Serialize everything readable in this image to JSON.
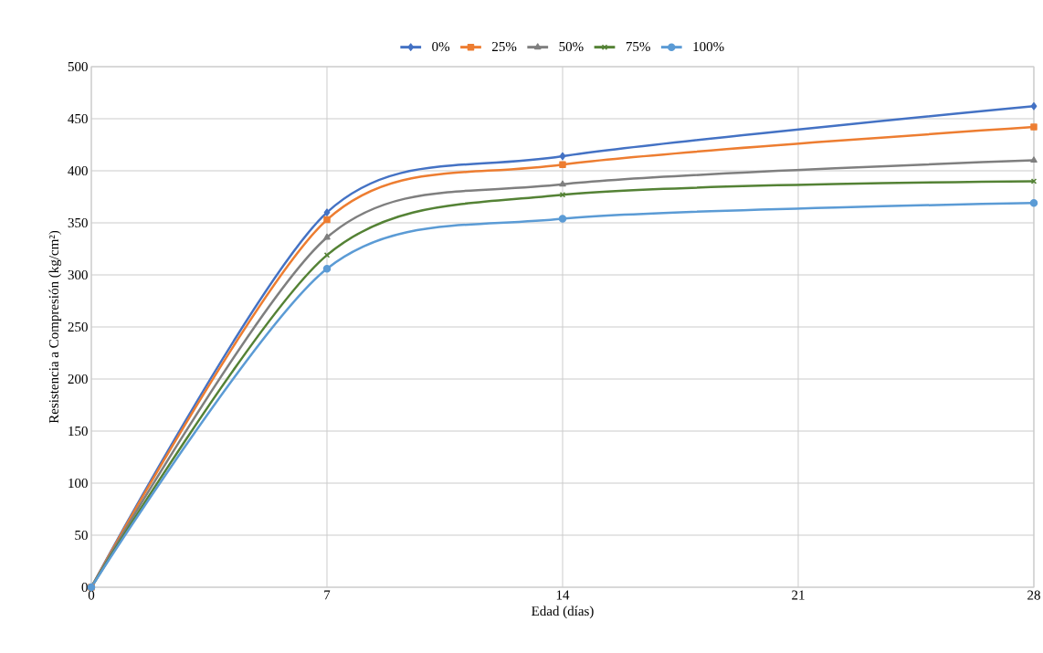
{
  "chart_data": {
    "type": "line",
    "xlabel": "Edad (días)",
    "ylabel": "Resistencia a Compresión (kg/cm²)",
    "x": [
      0,
      7,
      14,
      28
    ],
    "series": [
      {
        "name": "0%",
        "color": "#4472c4",
        "marker": "diamond",
        "values": [
          0,
          360,
          414,
          462
        ]
      },
      {
        "name": "25%",
        "color": "#ed7d31",
        "marker": "square",
        "values": [
          0,
          353,
          406,
          442
        ]
      },
      {
        "name": "50%",
        "color": "#7f7f7f",
        "marker": "triangle",
        "values": [
          0,
          336,
          387,
          410
        ]
      },
      {
        "name": "75%",
        "color": "#548235",
        "marker": "cross",
        "values": [
          0,
          319,
          377,
          390
        ]
      },
      {
        "name": "100%",
        "color": "#5b9bd5",
        "marker": "circle",
        "values": [
          0,
          306,
          354,
          369
        ]
      }
    ],
    "xlim": [
      0,
      28
    ],
    "xticks": [
      0,
      7,
      14,
      21,
      28
    ],
    "ylim": [
      0,
      500
    ],
    "yticks": [
      0,
      50,
      100,
      150,
      200,
      250,
      300,
      350,
      400,
      450,
      500
    ],
    "grid": true,
    "legend": "top",
    "line_style": "solid"
  }
}
